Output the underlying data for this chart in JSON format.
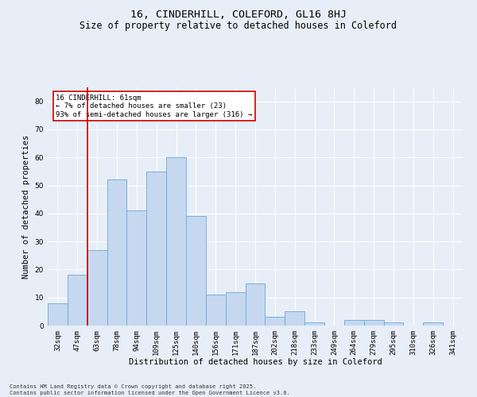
{
  "title": "16, CINDERHILL, COLEFORD, GL16 8HJ",
  "subtitle": "Size of property relative to detached houses in Coleford",
  "xlabel": "Distribution of detached houses by size in Coleford",
  "ylabel": "Number of detached properties",
  "footer_line1": "Contains HM Land Registry data © Crown copyright and database right 2025.",
  "footer_line2": "Contains public sector information licensed under the Open Government Licence v3.0.",
  "categories": [
    "32sqm",
    "47sqm",
    "63sqm",
    "78sqm",
    "94sqm",
    "109sqm",
    "125sqm",
    "140sqm",
    "156sqm",
    "171sqm",
    "187sqm",
    "202sqm",
    "218sqm",
    "233sqm",
    "249sqm",
    "264sqm",
    "279sqm",
    "295sqm",
    "310sqm",
    "326sqm",
    "341sqm"
  ],
  "values": [
    8,
    18,
    27,
    52,
    41,
    55,
    60,
    39,
    11,
    12,
    15,
    3,
    5,
    1,
    0,
    2,
    2,
    1,
    0,
    1,
    0
  ],
  "bar_color": "#c5d8f0",
  "bar_edge_color": "#6aaad4",
  "vline_x": 1.5,
  "vline_color": "#cc0000",
  "annotation_text": "16 CINDERHILL: 61sqm\n← 7% of detached houses are smaller (23)\n93% of semi-detached houses are larger (316) →",
  "annotation_box_color": "#ffffff",
  "annotation_box_edge": "#cc0000",
  "ylim": [
    0,
    85
  ],
  "yticks": [
    0,
    10,
    20,
    30,
    40,
    50,
    60,
    70,
    80
  ],
  "background_color": "#e8eef7",
  "plot_bg_color": "#e8eef7",
  "grid_color": "#ffffff",
  "title_fontsize": 9.5,
  "subtitle_fontsize": 8.5,
  "tick_fontsize": 6.5,
  "ylabel_fontsize": 7.5,
  "xlabel_fontsize": 7.5,
  "annotation_fontsize": 6.5,
  "footer_fontsize": 5.0
}
